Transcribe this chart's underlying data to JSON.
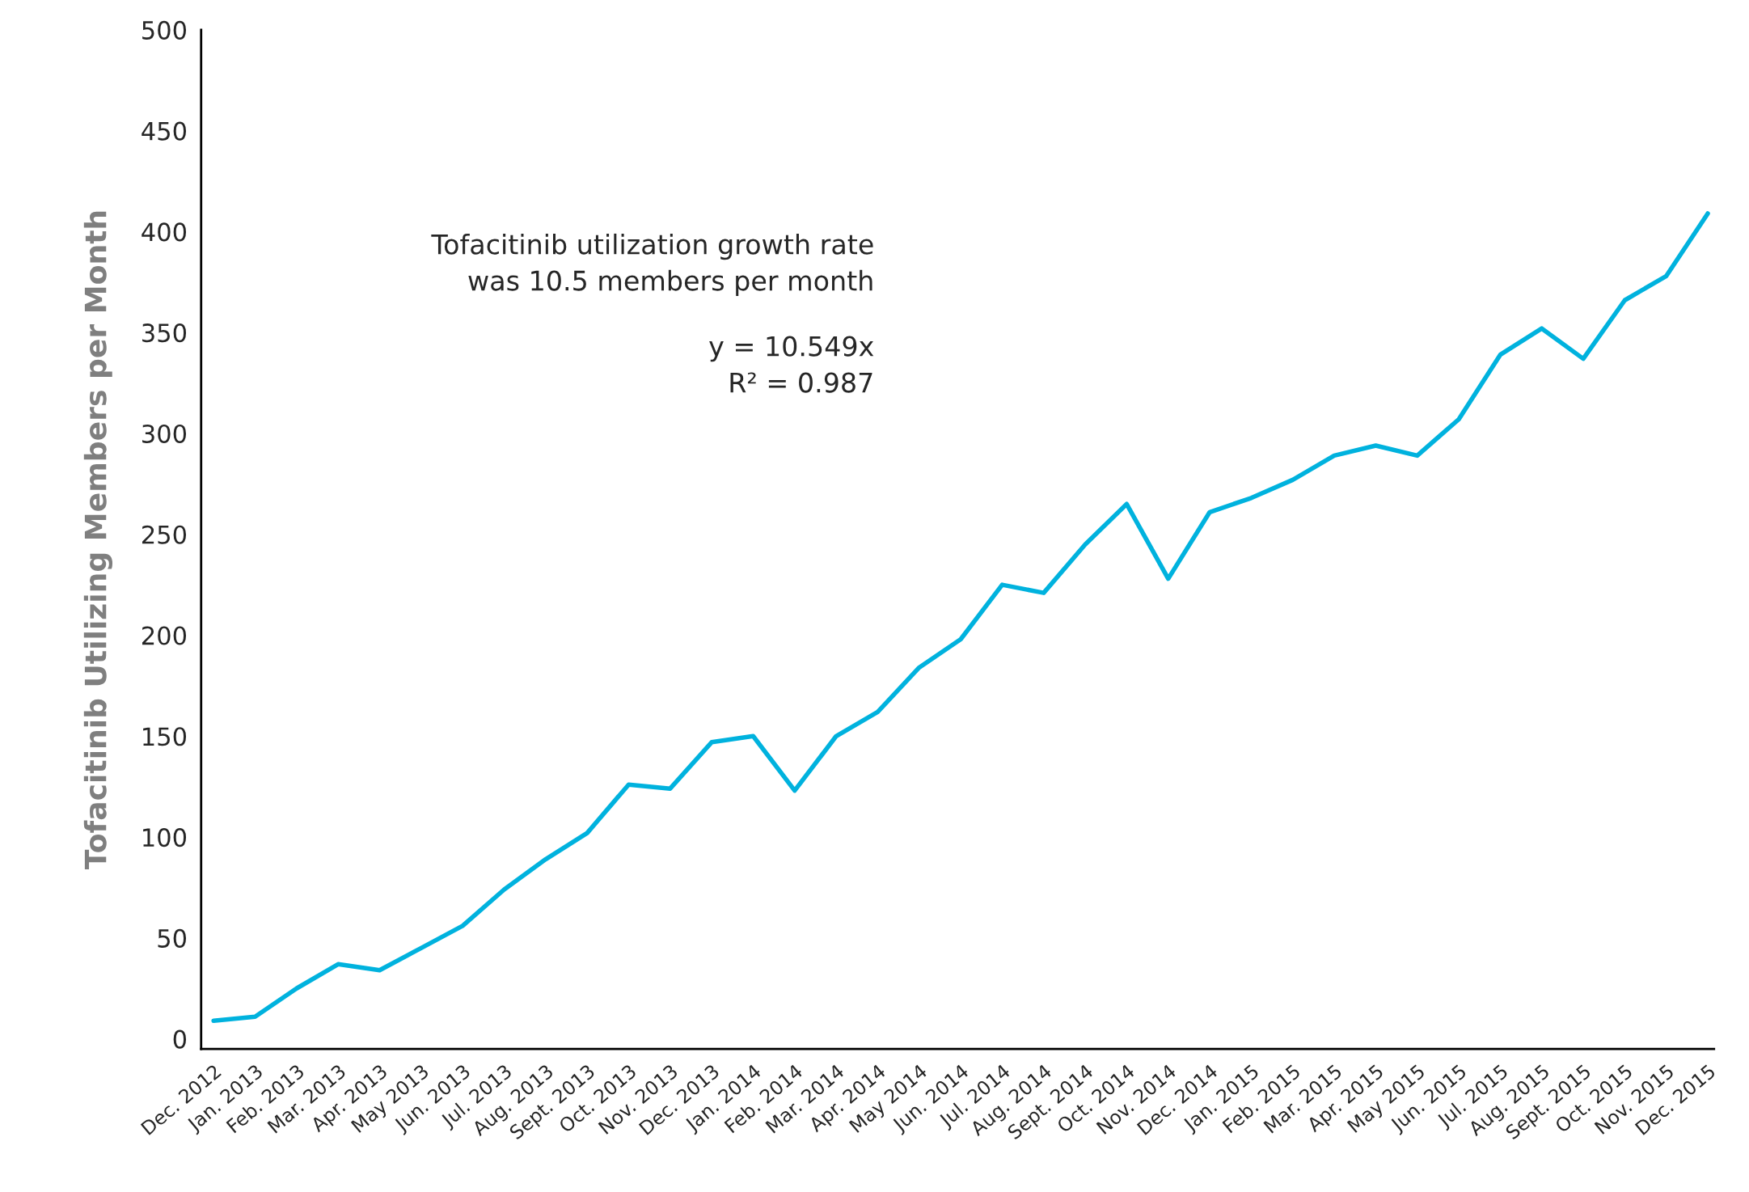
{
  "chart_data": {
    "type": "line",
    "ylabel": "Tofacitinib Utilizing Members per Month",
    "categories": [
      "Dec. 2012",
      "Jan. 2013",
      "Feb. 2013",
      "Mar. 2013",
      "Apr. 2013",
      "May 2013",
      "Jun. 2013",
      "Jul. 2013",
      "Aug. 2013",
      "Sept. 2013",
      "Oct. 2013",
      "Nov. 2013",
      "Dec. 2013",
      "Jan. 2014",
      "Feb. 2014",
      "Mar. 2014",
      "Apr. 2014",
      "May 2014",
      "Jun. 2014",
      "Jul. 2014",
      "Aug. 2014",
      "Sept. 2014",
      "Oct. 2014",
      "Nov. 2014",
      "Dec. 2014",
      "Jan. 2015",
      "Feb. 2015",
      "Mar. 2015",
      "Apr. 2015",
      "May 2015",
      "Jun. 2015",
      "Jul. 2015",
      "Aug. 2015",
      "Sept. 2015",
      "Oct. 2015",
      "Nov. 2015",
      "Dec. 2015"
    ],
    "series": [
      {
        "color": "#00b2de",
        "values": [
          9,
          11,
          25,
          37,
          34,
          45,
          56,
          74,
          89,
          102,
          126,
          124,
          147,
          150,
          123,
          150,
          162,
          184,
          198,
          225,
          221,
          245,
          265,
          228,
          261,
          268,
          277,
          289,
          294,
          289,
          307,
          339,
          352,
          337,
          366,
          378,
          409
        ]
      }
    ],
    "ylim": [
      -5,
      500
    ],
    "yticks": [
      0,
      50,
      100,
      150,
      200,
      250,
      300,
      350,
      400,
      450,
      500
    ],
    "annotations": [
      "Tofacitinib utilization growth rate\nwas 10.5 members per month",
      "y = 10.549x\nR² = 0.987"
    ],
    "grid": false
  }
}
